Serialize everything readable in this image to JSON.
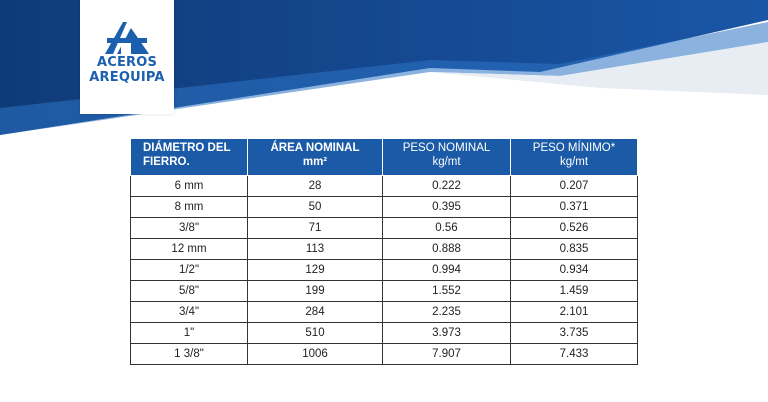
{
  "brand": {
    "line1": "ACEROS",
    "line2": "AREQUIPA",
    "color": "#1b5fae"
  },
  "colors": {
    "banner_dark": "#123f7e",
    "banner_light": "#2a6fc0",
    "header_bg": "#1a5aa6"
  },
  "table": {
    "headers": [
      {
        "line1": "DIÁMETRO DEL",
        "line2": "FIERRO."
      },
      {
        "line1": "ÁREA NOMINAL",
        "line2": "mm²"
      },
      {
        "line1": "PESO NOMINAL",
        "line2": "kg/mt"
      },
      {
        "line1": "PESO MÍNIMO*",
        "line2": "kg/mt"
      }
    ],
    "rows": [
      [
        "6 mm",
        "28",
        "0.222",
        "0.207"
      ],
      [
        "8 mm",
        "50",
        "0.395",
        "0.371"
      ],
      [
        "3/8\"",
        "71",
        "0.56",
        "0.526"
      ],
      [
        "12 mm",
        "113",
        "0.888",
        "0.835"
      ],
      [
        "1/2\"",
        "129",
        "0.994",
        "0.934"
      ],
      [
        "5/8\"",
        "199",
        "1.552",
        "1.459"
      ],
      [
        "3/4\"",
        "284",
        "2.235",
        "2.101"
      ],
      [
        "1\"",
        "510",
        "3.973",
        "3.735"
      ],
      [
        "1 3/8\"",
        "1006",
        "7.907",
        "7.433"
      ]
    ]
  }
}
